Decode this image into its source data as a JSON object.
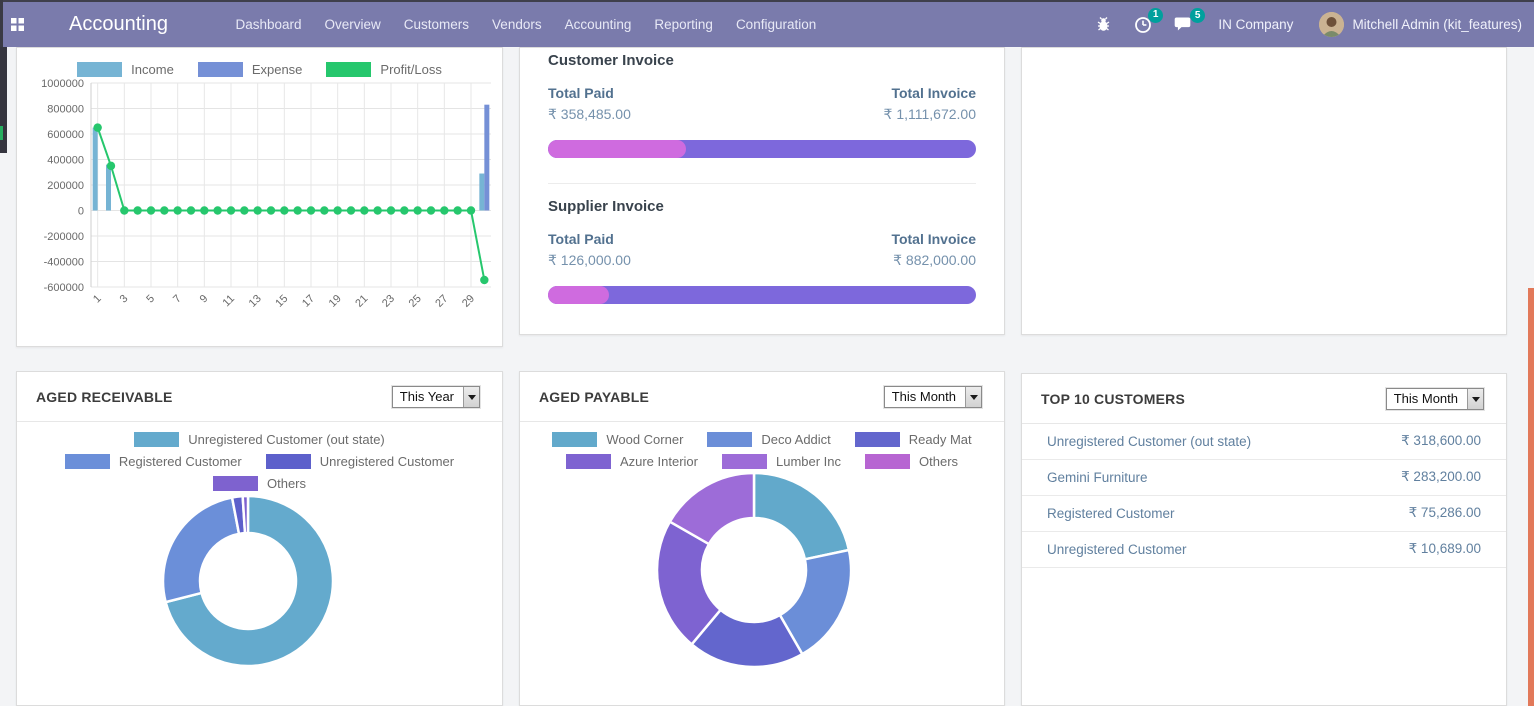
{
  "nav": {
    "app_title": "Accounting",
    "menu": [
      "Dashboard",
      "Overview",
      "Customers",
      "Vendors",
      "Accounting",
      "Reporting",
      "Configuration"
    ],
    "colors": {
      "bar": "#7a7bac",
      "badge": "#00a09d"
    },
    "systray": {
      "activities_badge": "1",
      "messages_badge": "5",
      "company": "IN Company",
      "user": "Mitchell Admin (kit_features)"
    }
  },
  "profit_chart": {
    "chart_data": {
      "type": "bar",
      "points": 30,
      "x_labels": [
        "1",
        "3",
        "5",
        "7",
        "9",
        "11",
        "13",
        "15",
        "17",
        "19",
        "21",
        "23",
        "25",
        "27",
        "29"
      ],
      "ylim": [
        -600000,
        1000000
      ],
      "ytick_step": 200000,
      "series": [
        {
          "name": "Income",
          "type": "bar",
          "color": "#76b4d4",
          "values": [
            650000,
            360000,
            0,
            0,
            0,
            0,
            0,
            0,
            0,
            0,
            0,
            0,
            0,
            0,
            0,
            0,
            0,
            0,
            0,
            0,
            0,
            0,
            0,
            0,
            0,
            0,
            0,
            0,
            0,
            290000
          ]
        },
        {
          "name": "Expense",
          "type": "bar",
          "color": "#7590d6",
          "values": [
            0,
            0,
            0,
            0,
            0,
            0,
            0,
            0,
            0,
            0,
            0,
            0,
            0,
            0,
            0,
            0,
            0,
            0,
            0,
            0,
            0,
            0,
            0,
            0,
            0,
            0,
            0,
            0,
            0,
            830000
          ]
        },
        {
          "name": "Profit/Loss",
          "type": "line",
          "color": "#26c76d",
          "values": [
            650000,
            350000,
            0,
            0,
            0,
            0,
            0,
            0,
            0,
            0,
            0,
            0,
            0,
            0,
            0,
            0,
            0,
            0,
            0,
            0,
            0,
            0,
            0,
            0,
            0,
            0,
            0,
            0,
            0,
            -545000
          ]
        }
      ]
    }
  },
  "invoices": {
    "paid_color": "#cf6bdf",
    "total_color": "#7d68dc",
    "customer": {
      "title": "Customer Invoice",
      "paid_label": "Total Paid",
      "paid_value": "₹ 358,485.00",
      "total_label": "Total Invoice",
      "total_value": "₹ 1,111,672.00",
      "paid_pct": 32.2
    },
    "supplier": {
      "title": "Supplier Invoice",
      "paid_label": "Total Paid",
      "paid_value": "₹ 126,000.00",
      "total_label": "Total Invoice",
      "total_value": "₹ 882,000.00",
      "paid_pct": 14.3
    }
  },
  "aged_receivable": {
    "title": "AGED RECEIVABLE",
    "period": "This Year",
    "chart_data": {
      "type": "pie",
      "labels": [
        "Unregistered Customer (out state)",
        "Registered Customer",
        "Unregistered Customer",
        "Others"
      ],
      "values": [
        71,
        26,
        2,
        1
      ],
      "colors": [
        "#64aacd",
        "#6b8fd9",
        "#5d60cb",
        "#7e62cf"
      ]
    }
  },
  "aged_payable": {
    "title": "AGED PAYABLE",
    "period": "This Month",
    "chart_data": {
      "type": "pie",
      "labels": [
        "Wood Corner",
        "Deco Addict",
        "Ready Mat",
        "Azure Interior",
        "Lumber Inc",
        "Others"
      ],
      "values": [
        21.7,
        20,
        19.4,
        22.2,
        16.7,
        0
      ],
      "colors": [
        "#62a9cb",
        "#6b8ed8",
        "#6366cd",
        "#7e63d1",
        "#9d6cd8",
        "#b765d2"
      ]
    }
  },
  "top_customers": {
    "title": "TOP 10 CUSTOMERS",
    "period": "This Month",
    "rows": [
      {
        "name": "Unregistered Customer (out state)",
        "amount": "₹ 318,600.00"
      },
      {
        "name": "Gemini Furniture",
        "amount": "₹ 283,200.00"
      },
      {
        "name": "Registered Customer",
        "amount": "₹ 75,286.00"
      },
      {
        "name": "Unregistered Customer",
        "amount": "₹ 10,689.00"
      }
    ]
  }
}
